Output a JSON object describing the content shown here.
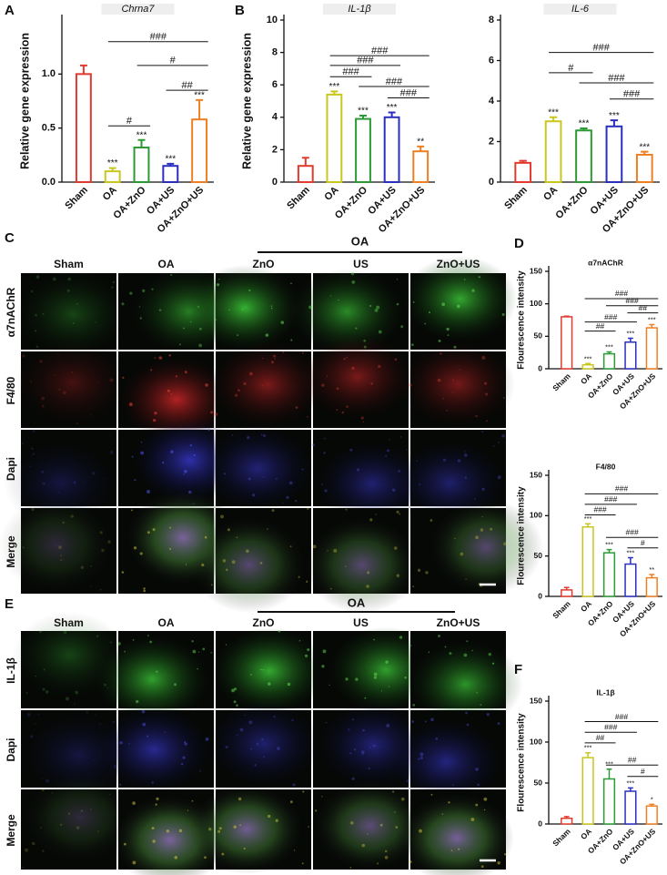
{
  "panel_labels": [
    "A",
    "B",
    "C",
    "D",
    "E",
    "F"
  ],
  "chart_data": [
    {
      "type": "bar",
      "title": "Chrna7",
      "title_style": "italic",
      "ylabel": "Relative gene expression",
      "categories": [
        "Sham",
        "OA",
        "OA+ZnO",
        "OA+US",
        "OA+ZnO+US"
      ],
      "values": [
        1.0,
        0.1,
        0.32,
        0.15,
        0.58
      ],
      "errors": [
        0.08,
        0.03,
        0.07,
        0.02,
        0.18
      ],
      "colors": [
        "#e23a2e",
        "#c9c71e",
        "#2b9a35",
        "#2a2fbd",
        "#f07f22"
      ],
      "significance": [
        null,
        "***",
        "***",
        "***",
        "***"
      ],
      "comparisons": [
        {
          "label": "###",
          "y": 1.3,
          "from": "OA",
          "to": "OA+ZnO+US"
        },
        {
          "label": "#",
          "y": 1.08,
          "from": "OA+ZnO",
          "to": "OA+ZnO+US"
        },
        {
          "label": "##",
          "y": 0.85,
          "from": "OA+US",
          "to": "OA+ZnO+US"
        },
        {
          "label": "#",
          "y": 0.52,
          "from": "OA",
          "to": "OA+ZnO"
        }
      ],
      "ylim": [
        0,
        1.5
      ],
      "yticks": [
        {
          "value": 0,
          "label": "0.0"
        },
        {
          "value": 0.5,
          "label": "0.5"
        },
        {
          "value": 1,
          "label": "1.0"
        }
      ]
    },
    {
      "type": "bar",
      "title": "IL-1β",
      "title_style": "italic",
      "ylabel": "Relative gene expression",
      "categories": [
        "Sham",
        "OA",
        "OA+ZnO",
        "OA+US",
        "OA+ZnO+US"
      ],
      "values": [
        1.0,
        5.4,
        3.9,
        4.0,
        1.9
      ],
      "errors": [
        0.5,
        0.2,
        0.2,
        0.3,
        0.3
      ],
      "colors": [
        "#e23a2e",
        "#c9c71e",
        "#2b9a35",
        "#2a2fbd",
        "#f07f22"
      ],
      "significance": [
        null,
        "***",
        "***",
        "***",
        "**"
      ],
      "comparisons": [
        {
          "label": "###",
          "y": 7.8,
          "from": "OA",
          "to": "OA+ZnO+US"
        },
        {
          "label": "###",
          "y": 7.2,
          "from": "OA",
          "to": "OA+US"
        },
        {
          "label": "###",
          "y": 6.5,
          "from": "OA",
          "to": "OA+ZnO"
        },
        {
          "label": "###",
          "y": 5.9,
          "from": "OA+ZnO",
          "to": "OA+ZnO+US"
        },
        {
          "label": "###",
          "y": 5.2,
          "from": "OA+US",
          "to": "OA+ZnO+US"
        }
      ],
      "ylim": [
        0,
        10
      ],
      "yticks": [
        0,
        2,
        4,
        6,
        8,
        10
      ]
    },
    {
      "type": "bar",
      "title": "IL-6",
      "title_style": "italic",
      "categories": [
        "Sham",
        "OA",
        "OA+ZnO",
        "OA+US",
        "OA+ZnO+US"
      ],
      "values": [
        0.95,
        3.0,
        2.55,
        2.75,
        1.35
      ],
      "errors": [
        0.1,
        0.2,
        0.1,
        0.3,
        0.15
      ],
      "colors": [
        "#e23a2e",
        "#c9c71e",
        "#2b9a35",
        "#2a2fbd",
        "#f07f22"
      ],
      "significance": [
        null,
        "***",
        "***",
        "***",
        "***"
      ],
      "comparisons": [
        {
          "label": "###",
          "y": 6.4,
          "from": "OA",
          "to": "OA+ZnO+US"
        },
        {
          "label": "#",
          "y": 5.4,
          "from": "OA",
          "to": "OA+ZnO"
        },
        {
          "label": "###",
          "y": 4.9,
          "from": "OA+ZnO",
          "to": "OA+ZnO+US"
        },
        {
          "label": "###",
          "y": 4.1,
          "from": "OA+US",
          "to": "OA+ZnO+US"
        }
      ],
      "ylim": [
        0,
        8
      ],
      "yticks": [
        0,
        2,
        4,
        6,
        8
      ]
    },
    {
      "type": "bar",
      "title": "α7nAChR",
      "title_style": "bold",
      "ylabel": "Flourescence intensity",
      "categories": [
        "Sham",
        "OA",
        "OA+ZnO",
        "OA+US",
        "OA+ZnO+US"
      ],
      "values": [
        80,
        6,
        23,
        41,
        63
      ],
      "errors": [
        1,
        2,
        3,
        6,
        5
      ],
      "colors": [
        "#e23a2e",
        "#c9c71e",
        "#2b9a35",
        "#2a2fbd",
        "#f07f22"
      ],
      "significance": [
        null,
        "***",
        "***",
        "***",
        "***"
      ],
      "comparisons": [
        {
          "label": "###",
          "y": 108,
          "from": "OA",
          "to": "OA+ZnO+US"
        },
        {
          "label": "###",
          "y": 97,
          "from": "OA+ZnO",
          "to": "OA+ZnO+US"
        },
        {
          "label": "##",
          "y": 86,
          "from": "OA+US",
          "to": "OA+ZnO+US"
        },
        {
          "label": "###",
          "y": 72,
          "from": "OA",
          "to": "OA+US"
        },
        {
          "label": "##",
          "y": 58,
          "from": "OA",
          "to": "OA+ZnO"
        }
      ],
      "ylim": [
        0,
        150
      ],
      "yticks": [
        0,
        50,
        100,
        150
      ]
    },
    {
      "type": "bar",
      "title": "F4/80",
      "title_style": "bold",
      "ylabel": "Flourescence intensity",
      "categories": [
        "Sham",
        "OA",
        "OA+ZnO",
        "OA+US",
        "OA+ZnO+US"
      ],
      "values": [
        8,
        86,
        54,
        40,
        23
      ],
      "errors": [
        3,
        4,
        4,
        8,
        4
      ],
      "colors": [
        "#e23a2e",
        "#c9c71e",
        "#2b9a35",
        "#2a2fbd",
        "#f07f22"
      ],
      "significance": [
        null,
        "***",
        "***",
        "***",
        "**"
      ],
      "comparisons": [
        {
          "label": "###",
          "y": 127,
          "from": "OA",
          "to": "OA+ZnO+US"
        },
        {
          "label": "###",
          "y": 114,
          "from": "OA",
          "to": "OA+US"
        },
        {
          "label": "###",
          "y": 101,
          "from": "OA",
          "to": "OA+ZnO"
        },
        {
          "label": "###",
          "y": 73,
          "from": "OA+ZnO",
          "to": "OA+ZnO+US"
        },
        {
          "label": "#",
          "y": 60,
          "from": "OA+US",
          "to": "OA+ZnO+US"
        }
      ],
      "ylim": [
        0,
        150
      ],
      "yticks": [
        0,
        50,
        100,
        150
      ]
    },
    {
      "type": "bar",
      "title": "IL-1β",
      "title_style": "bold",
      "ylabel": "Flourescence intensity",
      "categories": [
        "Sham",
        "OA",
        "OA+ZnO",
        "OA+US",
        "OA+ZnO+US"
      ],
      "values": [
        7,
        81,
        55,
        40,
        22
      ],
      "errors": [
        2,
        6,
        12,
        4,
        2
      ],
      "colors": [
        "#e23a2e",
        "#c9c71e",
        "#2b9a35",
        "#2a2fbd",
        "#f07f22"
      ],
      "significance": [
        null,
        "***",
        "***",
        "***",
        "*"
      ],
      "comparisons": [
        {
          "label": "###",
          "y": 125,
          "from": "OA",
          "to": "OA+ZnO+US"
        },
        {
          "label": "###",
          "y": 112,
          "from": "OA",
          "to": "OA+US"
        },
        {
          "label": "##",
          "y": 99,
          "from": "OA",
          "to": "OA+ZnO"
        },
        {
          "label": "##",
          "y": 72,
          "from": "OA+ZnO",
          "to": "OA+ZnO+US"
        },
        {
          "label": "#",
          "y": 58,
          "from": "OA+US",
          "to": "OA+ZnO+US"
        }
      ],
      "ylim": [
        0,
        150
      ],
      "yticks": [
        0,
        50,
        100,
        150
      ]
    }
  ],
  "figure_c": {
    "group_label": "OA",
    "columns": [
      "Sham",
      "OA",
      "ZnO",
      "US",
      "ZnO+US"
    ],
    "rows": [
      "α7nAChR",
      "F4/80",
      "Dapi",
      "Merge"
    ]
  },
  "figure_e": {
    "group_label": "OA",
    "columns": [
      "Sham",
      "OA",
      "ZnO",
      "US",
      "ZnO+US"
    ],
    "rows": [
      "IL-1β",
      "Dapi",
      "Merge"
    ]
  }
}
